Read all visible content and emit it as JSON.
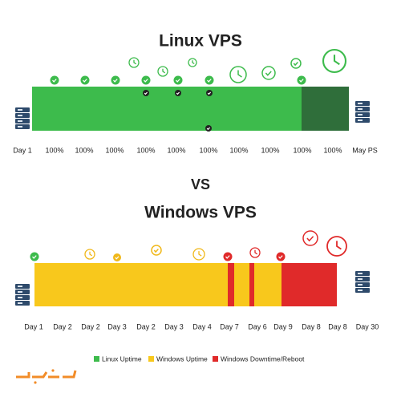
{
  "top": {
    "title": "Linux VPS",
    "axis_labels": [
      "Day 1",
      "100%",
      "100%",
      "100%",
      "100%",
      "100%",
      "100%",
      "100%",
      "100%",
      "100%",
      "100%",
      "May PS"
    ]
  },
  "separator": "VS",
  "bottom": {
    "title": "Windows VPS",
    "axis_labels": [
      "Day 1",
      "Day 2",
      "Day 2",
      "Day 3",
      "Day 2",
      "Day 3",
      "Day 4",
      "Day 7",
      "Day 6",
      "Day 9",
      "Day 8",
      "Day 8",
      "Day 30"
    ]
  },
  "legend": [
    "Linux Uptime",
    "Windows Uptime",
    "Windows Downtime/Reboot"
  ]
}
